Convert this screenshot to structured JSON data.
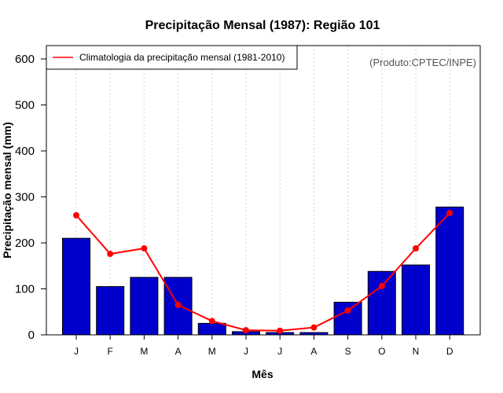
{
  "chart_data": {
    "type": "bar",
    "title": "Precipitação Mensal (1987): Região 101",
    "xlabel": "Mês",
    "ylabel": "Precipitação mensal (mm)",
    "credit": "(Produto:CPTEC/INPE)",
    "ylim": [
      0,
      600
    ],
    "yticks": [
      0,
      100,
      200,
      300,
      400,
      500,
      600
    ],
    "categories": [
      "J",
      "F",
      "M",
      "A",
      "M",
      "J",
      "J",
      "A",
      "S",
      "O",
      "N",
      "D"
    ],
    "series": [
      {
        "name": "Precipitação mensal (1987)",
        "kind": "bar",
        "color": "#0000cd",
        "values": [
          210,
          105,
          125,
          125,
          25,
          7,
          5,
          5,
          71,
          138,
          152,
          278
        ]
      },
      {
        "name": "Climatologia da precipitação mensal (1981-2010)",
        "kind": "line",
        "color": "#ff0000",
        "values": [
          260,
          176,
          188,
          65,
          30,
          10,
          9,
          16,
          53,
          106,
          188,
          265
        ]
      }
    ],
    "legend": {
      "position": "top-left",
      "entries": [
        "Climatologia da precipitação mensal (1981-2010)"
      ]
    },
    "grid": "vertical-dotted"
  }
}
